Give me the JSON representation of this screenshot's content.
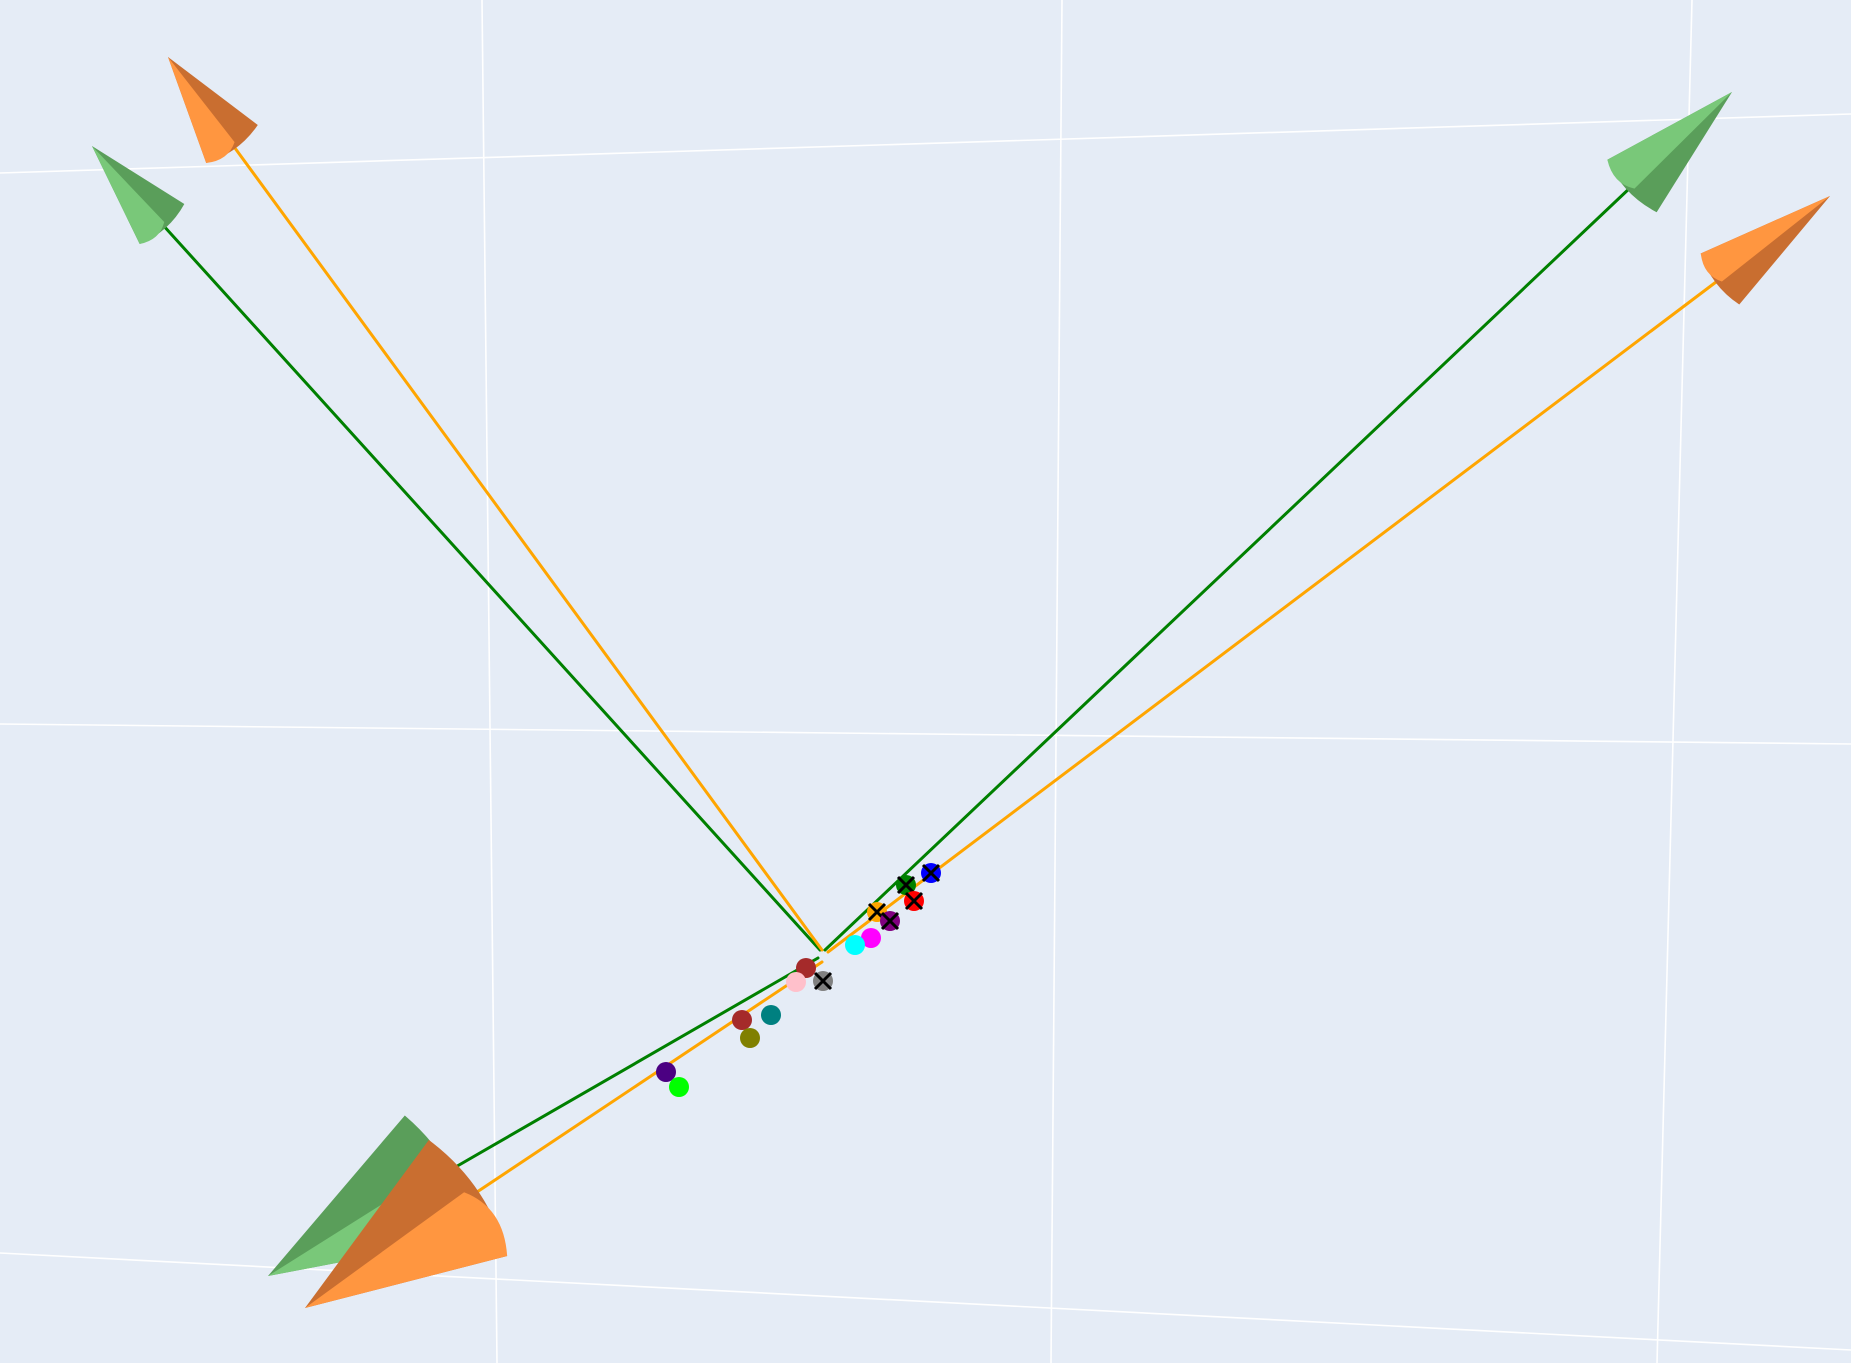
{
  "chart_data": {
    "type": "scatter3d",
    "title": "",
    "grid": true,
    "legend": "none",
    "colors": {
      "background": "#e5ecf6",
      "grid": "#ffffff",
      "axis_green": "#008000",
      "axis_orange": "#ffa500",
      "cone_green_light": "#79c879",
      "cone_green_dark": "#5a9e5a",
      "cone_orange_light": "#ff9640",
      "cone_orange_dark": "#c96e30"
    },
    "axes": [
      {
        "name": "",
        "color": "#008000",
        "direction": "upper-left"
      },
      {
        "name": "",
        "color": "#ffa500",
        "direction": "upper-left"
      },
      {
        "name": "",
        "color": "#008000",
        "direction": "upper-right"
      },
      {
        "name": "",
        "color": "#ffa500",
        "direction": "upper-right"
      },
      {
        "name": "",
        "color": "#008000",
        "direction": "lower-left"
      },
      {
        "name": "",
        "color": "#ffa500",
        "direction": "lower-left"
      }
    ],
    "points": [
      {
        "color": "#0000ff",
        "symbol": "x"
      },
      {
        "color": "#008000",
        "symbol": "x"
      },
      {
        "color": "#ff0000",
        "symbol": "x"
      },
      {
        "color": "#ffa500",
        "symbol": "x"
      },
      {
        "color": "#800080",
        "symbol": "x"
      },
      {
        "color": "#ff00ff",
        "symbol": "circle"
      },
      {
        "color": "#00ffff",
        "symbol": "circle"
      },
      {
        "color": "#a52a2a",
        "symbol": "circle"
      },
      {
        "color": "#808080",
        "symbol": "x"
      },
      {
        "color": "#ffc0cb",
        "symbol": "circle"
      },
      {
        "color": "#008080",
        "symbol": "circle"
      },
      {
        "color": "#a52a2a",
        "symbol": "circle"
      },
      {
        "color": "#808000",
        "symbol": "circle"
      },
      {
        "color": "#4b0082",
        "symbol": "circle"
      },
      {
        "color": "#00ff00",
        "symbol": "circle"
      }
    ]
  }
}
